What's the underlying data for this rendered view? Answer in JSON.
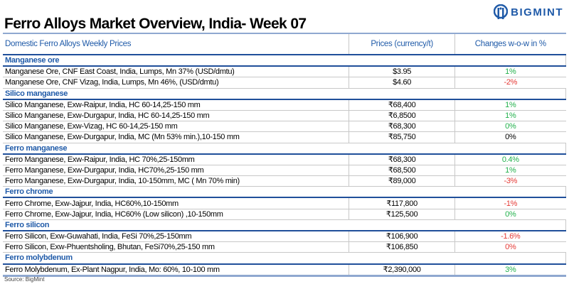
{
  "brand": {
    "name": "BIGMINT",
    "color": "#1f5aa8"
  },
  "title": "Ferro Alloys Market Overview, India- Week 07",
  "table": {
    "headers": [
      "Domestic Ferro Alloys Weekly Prices",
      "Prices (currency/t)",
      "Changes w-o-w in %"
    ],
    "sections": [
      {
        "name": "Manganese ore",
        "rows": [
          {
            "item": "Manganese Ore, CNF East Coast, India, Lumps, Mn 37% (USD/dmtu)",
            "price": "$3.95",
            "change": "1%",
            "color": "#22b14c"
          },
          {
            "item": "Manganese Ore, CNF Vizag, India, Lumps, Mn 46%, (USD/dmtu)",
            "price": "$4.60",
            "change": "-2%",
            "color": "#e53935"
          }
        ]
      },
      {
        "name": "Silico manganese",
        "rows": [
          {
            "item": "Silico Manganese, Exw-Raipur, India, HC 60-14,25-150 mm",
            "price": "₹68,400",
            "change": "1%",
            "color": "#22b14c"
          },
          {
            "item": "Silico Manganese, Exw-Durgapur, India, HC 60-14,25-150 mm",
            "price": "₹6,8500",
            "change": "1%",
            "color": "#22b14c"
          },
          {
            "item": "Silico Manganese, Exw-Vizag, HC 60-14,25-150 mm",
            "price": "₹68,300",
            "change": "0%",
            "color": "#22b14c"
          },
          {
            "item": "Silico Manganese, Exw-Durgapur, India, MC (Mn 53% min.),10-150 mm",
            "price": "₹85,750",
            "change": "0%",
            "color": "#000000"
          }
        ]
      },
      {
        "name": "Ferro manganese",
        "rows": [
          {
            "item": "Ferro Manganese, Exw-Raipur, India, HC 70%,25-150mm",
            "price": "₹68,300",
            "change": "0.4%",
            "color": "#22b14c"
          },
          {
            "item": "Ferro Manganese, Exw-Durgapur, India, HC70%,25-150 mm",
            "price": "₹68,500",
            "change": "1%",
            "color": "#22b14c"
          },
          {
            "item": "Ferro Manganese, Exw-Durgapur, India, 10-150mm, MC ( Mn 70% min)",
            "price": "₹89,000",
            "change": "-3%",
            "color": "#e53935"
          }
        ]
      },
      {
        "name": "Ferro chrome",
        "rows": [
          {
            "item": "Ferro Chrome, Exw-Jajpur, India, HC60%,10-150mm",
            "price": "₹117,800",
            "change": "-1%",
            "color": "#e53935"
          },
          {
            "item": "Ferro Chrome, Exw-Jajpur, India, HC60% (Low silicon) ,10-150mm",
            "price": "₹125,500",
            "change": "0%",
            "color": "#22b14c"
          }
        ]
      },
      {
        "name": "Ferro silicon",
        "rows": [
          {
            "item": "Ferro Silicon, Exw-Guwahati, India, FeSi 70%,25-150mm",
            "price": "₹106,900",
            "change": "-1.6%",
            "color": "#e53935"
          },
          {
            "item": "Ferro Silicon, Exw-Phuentsholing, Bhutan, FeSi70%,25-150 mm",
            "price": "₹106,850",
            "change": "0%",
            "color": "#e53935"
          }
        ]
      },
      {
        "name": "Ferro molybdenum",
        "rows": [
          {
            "item": "Ferro Molybdenum, Ex-Plant Nagpur, India, Mo: 60%, 10-100 mm",
            "price": "₹2,390,000",
            "change": "3%",
            "color": "#22b14c"
          }
        ]
      }
    ]
  },
  "source": "Source: BigMint"
}
